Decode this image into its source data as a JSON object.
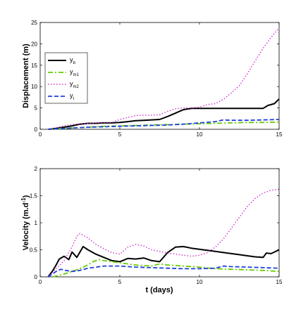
{
  "chart_data": [
    {
      "type": "line",
      "title": "",
      "xlabel": "",
      "ylabel": "Displacement (m)",
      "xlim": [
        0,
        15
      ],
      "ylim": [
        0,
        25
      ],
      "xticks": [
        0,
        5,
        10,
        15
      ],
      "yticks": [
        0,
        5,
        10,
        15,
        20,
        25
      ],
      "legend_position": "left",
      "series": [
        {
          "name": "y_b",
          "label_main": "y",
          "label_sub": "b",
          "color": "#000000",
          "style": "solid",
          "x": [
            0.5,
            1,
            1.5,
            2,
            2.5,
            3,
            3.5,
            4,
            4.5,
            5,
            5.5,
            6,
            6.5,
            7,
            7.5,
            8,
            8.5,
            9,
            9.5,
            10,
            10.5,
            11,
            11.5,
            12,
            12.5,
            13,
            13.5,
            14,
            14.3,
            14.7,
            15
          ],
          "y": [
            0,
            0.2,
            0.5,
            0.8,
            1.2,
            1.4,
            1.4,
            1.5,
            1.5,
            1.6,
            1.8,
            2.0,
            2.1,
            2.2,
            2.3,
            3.0,
            3.8,
            4.6,
            4.9,
            4.9,
            4.9,
            4.9,
            4.9,
            4.9,
            4.9,
            4.9,
            4.9,
            4.9,
            5.6,
            6.0,
            7.1
          ]
        },
        {
          "name": "y_m1",
          "label_main": "y",
          "label_sub": "m1",
          "color": "#66cc00",
          "style": "dashdot",
          "x": [
            0.5,
            1,
            1.5,
            2,
            2.5,
            3,
            3.5,
            4,
            5,
            6,
            7,
            8,
            9,
            10,
            11,
            12,
            13,
            14,
            15
          ],
          "y": [
            0,
            0.1,
            0.2,
            0.3,
            0.4,
            0.5,
            0.6,
            0.7,
            0.8,
            0.9,
            1.0,
            1.1,
            1.2,
            1.3,
            1.4,
            1.5,
            1.6,
            1.6,
            1.7
          ]
        },
        {
          "name": "y_m2",
          "label_main": "y",
          "label_sub": "m2",
          "color": "#cc33cc",
          "style": "dotted",
          "x": [
            0.5,
            1,
            1.5,
            2,
            2.5,
            3,
            3.5,
            4,
            4.5,
            5,
            5.5,
            6,
            6.5,
            7,
            7.5,
            8,
            8.5,
            9,
            9.5,
            10,
            10.5,
            11,
            11.5,
            12,
            12.5,
            13,
            13.5,
            14,
            14.5,
            15
          ],
          "y": [
            0,
            0.4,
            0.8,
            1.1,
            1.3,
            1.4,
            1.5,
            1.6,
            1.6,
            2.3,
            2.8,
            3.2,
            3.3,
            3.3,
            3.4,
            4.2,
            4.8,
            5.0,
            5.0,
            5.2,
            5.8,
            6.0,
            7.0,
            8.5,
            10.2,
            13.0,
            16.0,
            19.0,
            21.5,
            23.8
          ]
        },
        {
          "name": "y_t",
          "label_main": "y",
          "label_sub": "t",
          "color": "#1f3fdd",
          "style": "dashed",
          "x": [
            0.5,
            1,
            1.5,
            2,
            2.5,
            3,
            4,
            5,
            6,
            7,
            8,
            9,
            10,
            11,
            11.5,
            12,
            13,
            14,
            15
          ],
          "y": [
            0,
            0.1,
            0.2,
            0.3,
            0.4,
            0.5,
            0.6,
            0.7,
            0.8,
            0.9,
            1.0,
            1.2,
            1.5,
            1.8,
            2.2,
            2.1,
            2.1,
            2.2,
            2.3
          ]
        }
      ]
    },
    {
      "type": "line",
      "title": "",
      "xlabel": "t (days)",
      "ylabel": "Velocity (m.d",
      "ylabel_superscript": "-1",
      "ylabel_end": ")",
      "xlim": [
        0,
        15
      ],
      "ylim": [
        0,
        2
      ],
      "xticks": [
        0,
        5,
        10,
        15
      ],
      "yticks": [
        0,
        0.5,
        1,
        1.5,
        2
      ],
      "series": [
        {
          "name": "y_b",
          "color": "#000000",
          "style": "solid",
          "x": [
            0.5,
            0.8,
            1,
            1.2,
            1.5,
            1.8,
            2,
            2.3,
            2.7,
            3,
            3.5,
            4,
            4.5,
            5,
            5.5,
            6,
            6.5,
            7,
            7.5,
            8,
            8.5,
            9,
            9.5,
            10,
            10.5,
            11,
            11.5,
            12,
            12.5,
            13,
            13.5,
            14,
            14.2,
            14.5,
            15
          ],
          "y": [
            0,
            0.12,
            0.22,
            0.33,
            0.38,
            0.32,
            0.46,
            0.36,
            0.56,
            0.5,
            0.42,
            0.36,
            0.3,
            0.28,
            0.34,
            0.33,
            0.35,
            0.3,
            0.28,
            0.45,
            0.55,
            0.56,
            0.53,
            0.51,
            0.49,
            0.47,
            0.45,
            0.43,
            0.41,
            0.39,
            0.37,
            0.36,
            0.44,
            0.43,
            0.5
          ]
        },
        {
          "name": "y_m1",
          "color": "#66cc00",
          "style": "dashdot",
          "x": [
            0.8,
            1.5,
            2,
            2.5,
            3,
            3.3,
            3.7,
            4,
            5,
            6,
            7,
            7.5,
            8,
            9,
            10,
            11,
            12,
            13,
            14,
            15
          ],
          "y": [
            0,
            0.05,
            0.1,
            0.15,
            0.22,
            0.28,
            0.32,
            0.3,
            0.26,
            0.22,
            0.2,
            0.24,
            0.22,
            0.2,
            0.18,
            0.15,
            0.14,
            0.13,
            0.12,
            0.1
          ]
        },
        {
          "name": "y_m2",
          "color": "#cc33cc",
          "style": "dotted",
          "x": [
            0.5,
            1,
            1.5,
            2,
            2.3,
            2.5,
            3,
            3.5,
            4,
            4.5,
            5,
            5.5,
            6,
            6.5,
            7,
            7.5,
            8,
            8.5,
            9,
            9.5,
            10,
            10.5,
            11,
            11.5,
            12,
            12.5,
            13,
            13.5,
            14,
            14.5,
            15
          ],
          "y": [
            0,
            0.15,
            0.3,
            0.55,
            0.75,
            0.8,
            0.72,
            0.6,
            0.52,
            0.45,
            0.42,
            0.55,
            0.6,
            0.57,
            0.5,
            0.47,
            0.44,
            0.42,
            0.4,
            0.38,
            0.4,
            0.45,
            0.55,
            0.7,
            0.9,
            1.1,
            1.3,
            1.45,
            1.55,
            1.6,
            1.62
          ]
        },
        {
          "name": "y_t",
          "color": "#1f3fdd",
          "style": "dashed",
          "x": [
            0.5,
            0.8,
            1,
            1.3,
            1.6,
            2,
            2.5,
            3,
            4,
            5,
            6,
            7,
            8,
            9,
            10,
            11,
            11.5,
            12,
            13,
            14,
            15
          ],
          "y": [
            0,
            0.06,
            0.1,
            0.14,
            0.12,
            0.1,
            0.12,
            0.16,
            0.2,
            0.2,
            0.18,
            0.17,
            0.16,
            0.15,
            0.15,
            0.16,
            0.2,
            0.19,
            0.18,
            0.17,
            0.16
          ]
        }
      ]
    }
  ]
}
